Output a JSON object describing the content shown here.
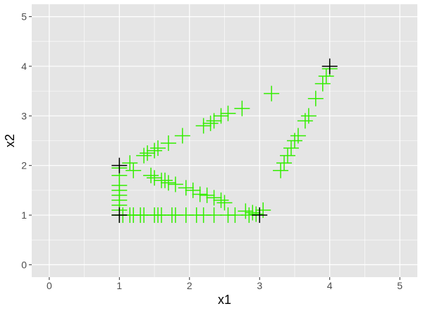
{
  "chart_data": {
    "type": "scatter",
    "title": "",
    "xlabel": "x1",
    "ylabel": "x2",
    "xlim": [
      -0.25,
      5.25
    ],
    "ylim": [
      -0.25,
      5.25
    ],
    "x_ticks": [
      0,
      1,
      2,
      3,
      4,
      5
    ],
    "y_ticks": [
      0,
      1,
      2,
      3,
      4,
      5
    ],
    "x_tick_labels": [
      "0",
      "1",
      "2",
      "3",
      "4",
      "5"
    ],
    "y_tick_labels": [
      "0",
      "1",
      "2",
      "3",
      "4",
      "5"
    ],
    "grid": true,
    "marker": "plus",
    "panel_color": "#e5e5e5",
    "grid_color": "#ffffff",
    "series": [
      {
        "color": "#33ee00",
        "points": [
          [
            1.0,
            1.0
          ],
          [
            1.05,
            1.0
          ],
          [
            1.15,
            1.0
          ],
          [
            1.2,
            1.0
          ],
          [
            1.3,
            1.0
          ],
          [
            1.35,
            1.0
          ],
          [
            1.5,
            1.0
          ],
          [
            1.55,
            1.0
          ],
          [
            1.6,
            1.0
          ],
          [
            1.75,
            1.0
          ],
          [
            1.8,
            1.0
          ],
          [
            1.95,
            1.0
          ],
          [
            2.1,
            1.0
          ],
          [
            2.2,
            1.0
          ],
          [
            2.35,
            1.0
          ],
          [
            2.55,
            1.0
          ],
          [
            2.65,
            1.0
          ],
          [
            2.85,
            1.0
          ],
          [
            1.0,
            1.1
          ],
          [
            1.0,
            1.2
          ],
          [
            1.0,
            1.3
          ],
          [
            1.0,
            1.4
          ],
          [
            1.0,
            1.5
          ],
          [
            1.0,
            1.6
          ],
          [
            1.0,
            1.8
          ],
          [
            1.0,
            1.95
          ],
          [
            1.15,
            2.05
          ],
          [
            1.2,
            1.9
          ],
          [
            1.35,
            2.2
          ],
          [
            1.4,
            2.25
          ],
          [
            1.5,
            2.3
          ],
          [
            1.55,
            2.35
          ],
          [
            1.7,
            2.45
          ],
          [
            1.9,
            2.6
          ],
          [
            2.2,
            2.8
          ],
          [
            2.3,
            2.85
          ],
          [
            2.35,
            2.9
          ],
          [
            2.45,
            3.0
          ],
          [
            2.55,
            3.05
          ],
          [
            2.75,
            3.15
          ],
          [
            3.17,
            3.45
          ],
          [
            1.45,
            1.8
          ],
          [
            1.5,
            1.75
          ],
          [
            1.6,
            1.7
          ],
          [
            1.65,
            1.7
          ],
          [
            1.7,
            1.65
          ],
          [
            1.8,
            1.62
          ],
          [
            1.95,
            1.55
          ],
          [
            2.05,
            1.5
          ],
          [
            2.15,
            1.42
          ],
          [
            2.25,
            1.4
          ],
          [
            2.35,
            1.35
          ],
          [
            2.45,
            1.3
          ],
          [
            2.5,
            1.25
          ],
          [
            2.8,
            1.08
          ],
          [
            2.9,
            1.05
          ],
          [
            2.95,
            1.02
          ],
          [
            3.05,
            1.1
          ],
          [
            3.3,
            1.9
          ],
          [
            3.35,
            2.05
          ],
          [
            3.4,
            2.2
          ],
          [
            3.45,
            2.35
          ],
          [
            3.5,
            2.5
          ],
          [
            3.55,
            2.6
          ],
          [
            3.65,
            2.9
          ],
          [
            3.7,
            3.0
          ],
          [
            3.8,
            3.35
          ],
          [
            3.9,
            3.65
          ],
          [
            3.95,
            3.8
          ],
          [
            4.0,
            3.95
          ]
        ]
      },
      {
        "color": "#000000",
        "points": [
          [
            1.0,
            1.0
          ],
          [
            1.0,
            2.0
          ],
          [
            3.0,
            1.0
          ],
          [
            4.0,
            4.0
          ]
        ]
      }
    ]
  }
}
